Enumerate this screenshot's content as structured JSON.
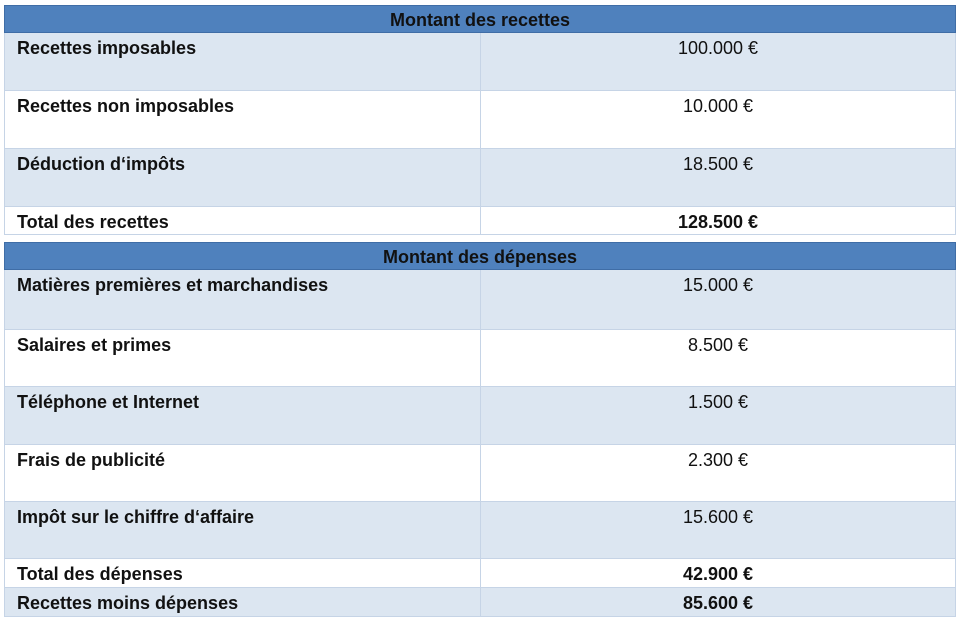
{
  "sections": [
    {
      "title": "Montant des recettes",
      "rows": [
        [
          "Recettes imposables",
          "100.000 €"
        ],
        [
          "Recettes non imposables",
          "10.000 €"
        ],
        [
          "Déduction d‘impôts",
          "18.500 €"
        ]
      ],
      "totals": [
        [
          "Total des recettes",
          "128.500 €"
        ]
      ]
    },
    {
      "title": "Montant des dépenses",
      "rows": [
        [
          "Matières premières et marchandises",
          "15.000 €"
        ],
        [
          "Salaires et primes",
          "8.500 €"
        ],
        [
          "Téléphone et Internet",
          "1.500 €"
        ],
        [
          "Frais de publicité",
          "2.300 €"
        ],
        [
          "Impôt sur le chiffre d‘affaire",
          "15.600 €"
        ]
      ],
      "totals": [
        [
          "Total des dépenses",
          "42.900 €"
        ],
        [
          "Recettes moins dépenses",
          "85.600 €"
        ]
      ]
    }
  ]
}
